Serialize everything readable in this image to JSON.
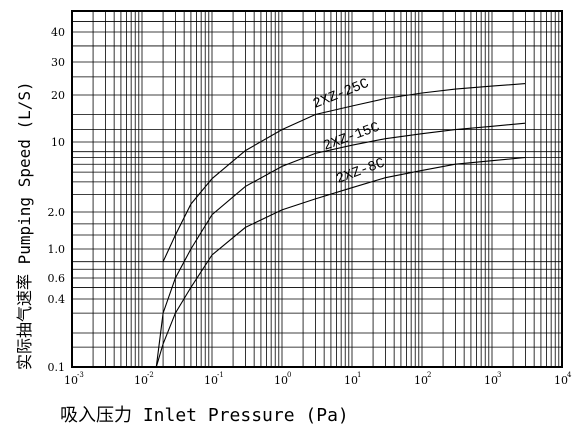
{
  "chart_data": {
    "type": "line",
    "xscale": "log",
    "yscale": "custom",
    "xlim": [
      0.001,
      10000
    ],
    "ylim": [
      0.1,
      50
    ],
    "grid": true,
    "xlabel": "吸入压力  Inlet Pressure (Pa)",
    "ylabel": "实际抽气速率  Pumping Speed (L/S)",
    "x_ticks": [
      {
        "base": "10",
        "exp": "-3"
      },
      {
        "base": "10",
        "exp": "-2"
      },
      {
        "base": "10",
        "exp": "-1"
      },
      {
        "base": "10",
        "exp": "0"
      },
      {
        "base": "10",
        "exp": "1"
      },
      {
        "base": "10",
        "exp": "2"
      },
      {
        "base": "10",
        "exp": "3"
      },
      {
        "base": "10",
        "exp": "4"
      }
    ],
    "y_ticks": [
      "0.1",
      "0.4",
      "0.6",
      "1.0",
      "2.0",
      "10",
      "20",
      "30",
      "40"
    ],
    "series": [
      {
        "name": "2XZ-25C",
        "x": [
          0.02,
          0.03,
          0.05,
          0.1,
          0.3,
          1,
          3,
          10,
          30,
          100,
          300,
          1000,
          3000
        ],
        "y": [
          0.8,
          1.3,
          2.4,
          4.3,
          8.2,
          12,
          15,
          17,
          19,
          20.5,
          21.5,
          22.3,
          23
        ]
      },
      {
        "name": "2XZ-15C",
        "x": [
          0.016,
          0.02,
          0.03,
          0.05,
          0.1,
          0.3,
          1,
          3,
          10,
          30,
          100,
          300,
          1000,
          3000
        ],
        "y": [
          0.1,
          0.3,
          0.6,
          1.0,
          1.9,
          3.6,
          5.7,
          7.7,
          9.3,
          10.5,
          11.3,
          12.0,
          12.6,
          13.2
        ]
      },
      {
        "name": "2XZ-8C",
        "x": [
          0.016,
          0.02,
          0.03,
          0.05,
          0.1,
          0.3,
          1,
          3,
          10,
          30,
          100,
          300,
          1000,
          3000
        ],
        "y": [
          0.1,
          0.16,
          0.3,
          0.5,
          0.9,
          1.5,
          2.1,
          2.7,
          3.5,
          4.4,
          5.2,
          6.0,
          6.5,
          7.0
        ]
      }
    ]
  }
}
